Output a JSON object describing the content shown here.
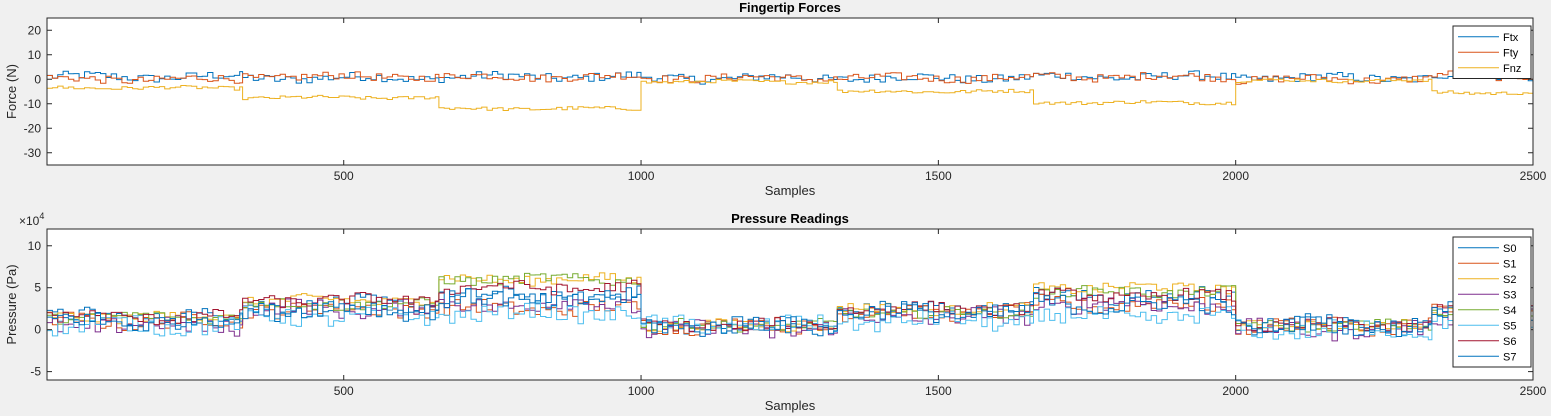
{
  "chart_data": [
    {
      "type": "line",
      "title": "Fingertip Forces",
      "xlabel": "Samples",
      "ylabel": "Force (N)",
      "xlim": [
        1,
        2500
      ],
      "ylim": [
        -35,
        25
      ],
      "xticks": [
        500,
        1000,
        1500,
        2000,
        2500
      ],
      "yticks": [
        -30,
        -20,
        -10,
        0,
        10,
        20
      ],
      "legend_position": "top-right",
      "segment_starts": [
        1,
        330,
        660,
        1000,
        1330,
        1660,
        2000,
        2330
      ],
      "series": [
        {
          "name": "Ftx",
          "color": "#0072BD",
          "segment_means": [
            1,
            0.5,
            1,
            0.5,
            0.5,
            1,
            0.5,
            1.5
          ],
          "amplitude": 1.8
        },
        {
          "name": "Fty",
          "color": "#D95319",
          "segment_means": [
            0,
            1,
            1,
            0.5,
            0.5,
            1,
            0,
            1.5
          ],
          "amplitude": 1.6
        },
        {
          "name": "Fnz",
          "color": "#EDB120",
          "segment_means": [
            -3.5,
            -7.5,
            -12,
            -1,
            -5,
            -9.5,
            -0.5,
            -5.5
          ],
          "amplitude": 0.7
        }
      ]
    },
    {
      "type": "line",
      "title": "Pressure Readings",
      "xlabel": "Samples",
      "ylabel": "Pressure (Pa)",
      "y_exponent_label": "×10",
      "y_exponent": "4",
      "xlim": [
        1,
        2500
      ],
      "ylim": [
        -6,
        12
      ],
      "xticks": [
        500,
        1000,
        1500,
        2000,
        2500
      ],
      "yticks": [
        -5,
        0,
        5,
        10
      ],
      "legend_position": "top-right",
      "segment_starts": [
        1,
        330,
        660,
        1000,
        1330,
        1660,
        2000,
        2330
      ],
      "series": [
        {
          "name": "S0",
          "color": "#0072BD",
          "segment_means": [
            1.5,
            3,
            4,
            0.5,
            2.5,
            4,
            0.5,
            2.5
          ],
          "amplitude": 0.9
        },
        {
          "name": "S1",
          "color": "#D95319",
          "segment_means": [
            1,
            2.5,
            2.5,
            0.5,
            2,
            3,
            0.5,
            2
          ],
          "amplitude": 0.9
        },
        {
          "name": "S2",
          "color": "#EDB120",
          "segment_means": [
            1.5,
            3.5,
            6,
            0.5,
            2.5,
            5,
            0.5,
            2
          ],
          "amplitude": 0.6
        },
        {
          "name": "S3",
          "color": "#7E2F8E",
          "segment_means": [
            0.5,
            2.5,
            3,
            0,
            1.5,
            3,
            0,
            1.5
          ],
          "amplitude": 1.0
        },
        {
          "name": "S4",
          "color": "#77AC30",
          "segment_means": [
            1.5,
            3,
            6,
            0.5,
            2,
            4.5,
            0.5,
            2
          ],
          "amplitude": 0.6
        },
        {
          "name": "S5",
          "color": "#4DBEEE",
          "segment_means": [
            0.5,
            1.5,
            2,
            0.5,
            1,
            1.5,
            0,
            1
          ],
          "amplitude": 1.0
        },
        {
          "name": "S6",
          "color": "#A2142F",
          "segment_means": [
            1.5,
            3.5,
            5,
            0.5,
            2.5,
            4,
            0.5,
            2.5
          ],
          "amplitude": 0.7
        },
        {
          "name": "S7",
          "color": "#0072BD",
          "segment_means": [
            1,
            2.5,
            3.5,
            0.5,
            2,
            3,
            0.5,
            2
          ],
          "amplitude": 1.1
        }
      ]
    }
  ]
}
